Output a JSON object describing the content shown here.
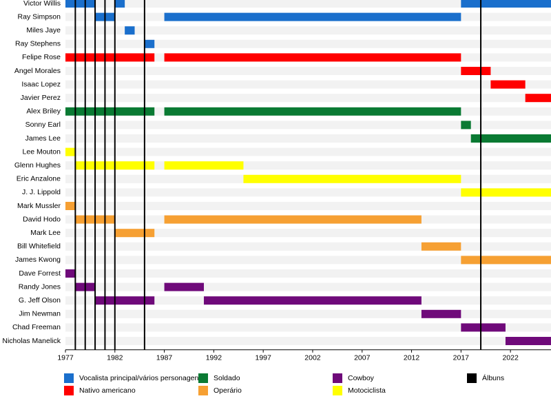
{
  "chart_data": {
    "type": "timeline",
    "xlim": [
      1977,
      2026.1
    ],
    "xticks": [
      1977,
      1982,
      1987,
      1992,
      1997,
      2002,
      2007,
      2012,
      2017,
      2022
    ],
    "roles": [
      {
        "name": "Vocalista principal/vários personagens",
        "color": "#1a6fcc"
      },
      {
        "name": "Nativo americano",
        "color": "#ff0000"
      },
      {
        "name": "Soldado",
        "color": "#0a7a33"
      },
      {
        "name": "Operário",
        "color": "#f6a033"
      },
      {
        "name": "Cowboy",
        "color": "#6f0a7a"
      },
      {
        "name": "Motociclista",
        "color": "#ffff00"
      }
    ],
    "albums": {
      "name": "Álbuns",
      "color": "#000000",
      "x": [
        1978,
        1979,
        1980,
        1981,
        1982,
        1985,
        2019
      ]
    },
    "members": [
      {
        "name": "Victor Willis",
        "role": 0,
        "periods": [
          [
            1977,
            1980
          ],
          [
            1982,
            1983
          ],
          [
            2017,
            2026.1
          ]
        ]
      },
      {
        "name": "Ray Simpson",
        "role": 0,
        "periods": [
          [
            1980,
            1982
          ],
          [
            1987,
            2017
          ]
        ]
      },
      {
        "name": "Miles Jaye",
        "role": 0,
        "periods": [
          [
            1983,
            1984
          ]
        ]
      },
      {
        "name": "Ray Stephens",
        "role": 0,
        "periods": [
          [
            1985,
            1986
          ]
        ]
      },
      {
        "name": "Felipe Rose",
        "role": 1,
        "periods": [
          [
            1977,
            1986
          ],
          [
            1987,
            2017
          ]
        ]
      },
      {
        "name": "Angel Morales",
        "role": 1,
        "periods": [
          [
            2017,
            2020
          ]
        ]
      },
      {
        "name": "Isaac Lopez",
        "role": 1,
        "periods": [
          [
            2020,
            2023.5
          ]
        ]
      },
      {
        "name": "Javier Perez",
        "role": 1,
        "periods": [
          [
            2023.5,
            2026.1
          ]
        ]
      },
      {
        "name": "Alex Briley",
        "role": 2,
        "periods": [
          [
            1977,
            1986
          ],
          [
            1987,
            2017
          ]
        ]
      },
      {
        "name": "Sonny Earl",
        "role": 2,
        "periods": [
          [
            2017,
            2018
          ]
        ]
      },
      {
        "name": "James Lee",
        "role": 2,
        "periods": [
          [
            2018,
            2026.1
          ]
        ]
      },
      {
        "name": "Lee Mouton",
        "role": 5,
        "periods": [
          [
            1977,
            1978
          ]
        ]
      },
      {
        "name": "Glenn Hughes",
        "role": 5,
        "periods": [
          [
            1978,
            1986
          ],
          [
            1987,
            1995
          ]
        ]
      },
      {
        "name": "Eric Anzalone",
        "role": 5,
        "periods": [
          [
            1995,
            2017
          ]
        ]
      },
      {
        "name": "J. J. Lippold",
        "role": 5,
        "periods": [
          [
            2017,
            2026.1
          ]
        ]
      },
      {
        "name": "Mark Mussler",
        "role": 3,
        "periods": [
          [
            1977,
            1978
          ]
        ]
      },
      {
        "name": "David Hodo",
        "role": 3,
        "periods": [
          [
            1978,
            1982
          ],
          [
            1987,
            2013
          ]
        ]
      },
      {
        "name": "Mark Lee",
        "role": 3,
        "periods": [
          [
            1982,
            1986
          ]
        ]
      },
      {
        "name": "Bill Whitefield",
        "role": 3,
        "periods": [
          [
            2013,
            2017
          ]
        ]
      },
      {
        "name": "James Kwong",
        "role": 3,
        "periods": [
          [
            2017,
            2026.1
          ]
        ]
      },
      {
        "name": "Dave Forrest",
        "role": 4,
        "periods": [
          [
            1977,
            1978
          ]
        ]
      },
      {
        "name": "Randy Jones",
        "role": 4,
        "periods": [
          [
            1978,
            1980
          ],
          [
            1987,
            1991
          ]
        ]
      },
      {
        "name": "G. Jeff Olson",
        "role": 4,
        "periods": [
          [
            1980,
            1986
          ],
          [
            1991,
            2013
          ]
        ]
      },
      {
        "name": "Jim Newman",
        "role": 4,
        "periods": [
          [
            2013,
            2017
          ]
        ]
      },
      {
        "name": "Chad Freeman",
        "role": 4,
        "periods": [
          [
            2017,
            2021.5
          ]
        ]
      },
      {
        "name": "Nicholas Manelick",
        "role": 4,
        "periods": [
          [
            2021.5,
            2026.1
          ]
        ]
      }
    ]
  }
}
